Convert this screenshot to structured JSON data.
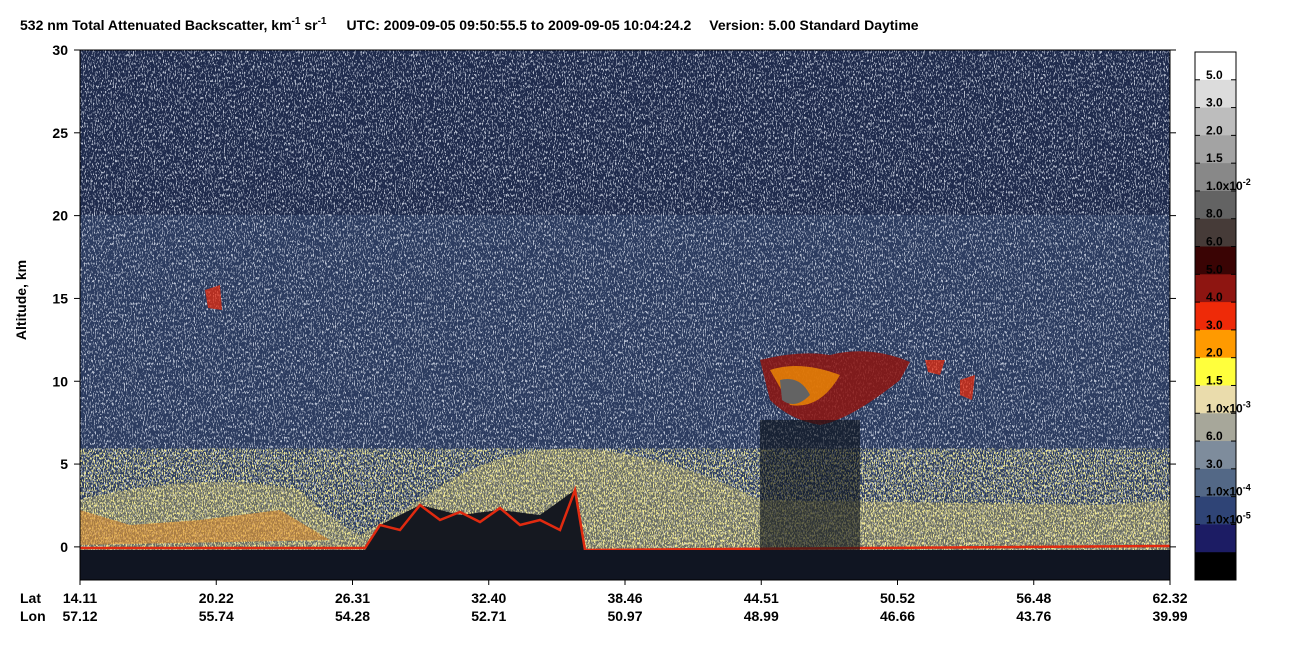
{
  "chart_data": {
    "type": "curtain",
    "title": {
      "text": "532 nm Total Attenuated Backscatter, km",
      "sup1": "-1",
      "mid": " sr",
      "sup2": "-1",
      "utc": "UTC:  2009-09-05 09:50:55.5  to  2009-09-05 10:04:24.2",
      "version": "Version: 5.00  Standard  Daytime"
    },
    "ylabel": "Altitude, km",
    "ylim": [
      -2,
      30
    ],
    "yticks": [
      0,
      5,
      10,
      15,
      20,
      25,
      30
    ],
    "x_rows": [
      {
        "name": "Lat",
        "labels": [
          "14.11",
          "20.22",
          "26.31",
          "32.40",
          "38.46",
          "44.51",
          "50.52",
          "56.48",
          "62.32"
        ]
      },
      {
        "name": "Lon",
        "labels": [
          "57.12",
          "55.74",
          "54.28",
          "52.71",
          "50.97",
          "48.99",
          "46.66",
          "43.76",
          "39.99"
        ]
      }
    ],
    "colorbar": {
      "colors": [
        "#ffffff",
        "#dcdcdc",
        "#bdbdbd",
        "#a3a3a3",
        "#888888",
        "#636363",
        "#463b38",
        "#3a0404",
        "#8e1511",
        "#ee2a08",
        "#ff9a00",
        "#ffff3c",
        "#eadcac",
        "#a7a79a",
        "#7e8c9c",
        "#536886",
        "#2f4476",
        "#1c1c64",
        "#000000"
      ],
      "labels": [
        {
          "base": "5.0"
        },
        {
          "base": "3.0"
        },
        {
          "base": "2.0"
        },
        {
          "base": "1.5"
        },
        {
          "base": "1.0x10",
          "exp": "-2"
        },
        {
          "base": "8.0"
        },
        {
          "base": "6.0"
        },
        {
          "base": "5.0"
        },
        {
          "base": "4.0"
        },
        {
          "base": "3.0"
        },
        {
          "base": "2.0"
        },
        {
          "base": "1.5"
        },
        {
          "base": "1.0x10",
          "exp": "-3"
        },
        {
          "base": "6.0"
        },
        {
          "base": "3.0"
        },
        {
          "base": "1.0x10",
          "exp": "-4"
        },
        {
          "base": "1.0x10",
          "exp": "-5"
        }
      ]
    }
  }
}
